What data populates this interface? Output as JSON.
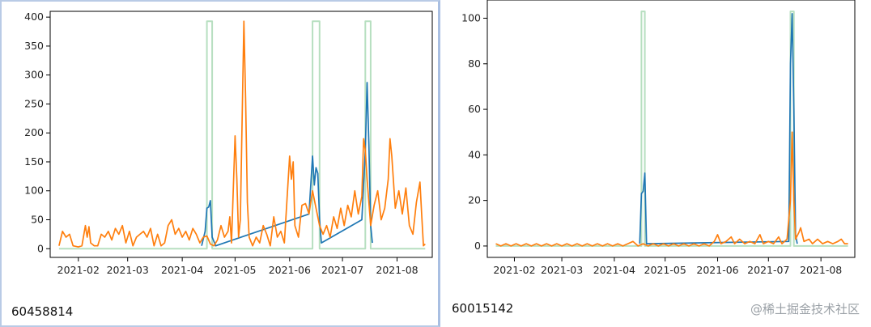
{
  "captions": {
    "left": "60458814",
    "right": "60015142"
  },
  "watermark": "@稀土掘金技术社区",
  "colors": {
    "series_blue": "#1f77b4",
    "series_orange": "#ff7f0e",
    "series_green": "#b7dfc0"
  },
  "chart_data": [
    {
      "type": "line",
      "x_type": "date",
      "xlim": [
        "2021-01-16",
        "2021-08-21"
      ],
      "ylim": [
        -15,
        410
      ],
      "x_ticks": [
        "2021-02",
        "2021-03",
        "2021-04",
        "2021-05",
        "2021-06",
        "2021-07",
        "2021-08"
      ],
      "y_ticks": [
        0,
        50,
        100,
        150,
        200,
        250,
        300,
        350,
        400
      ],
      "series": [
        {
          "color": "#b7dfc0",
          "shape": "step",
          "points": [
            [
              "2021-01-21",
              0
            ],
            [
              "2021-04-15",
              0
            ],
            [
              "2021-04-15",
              393
            ],
            [
              "2021-04-18",
              393
            ],
            [
              "2021-04-18",
              0
            ],
            [
              "2021-06-14",
              0
            ],
            [
              "2021-06-14",
              393
            ],
            [
              "2021-06-18",
              393
            ],
            [
              "2021-06-18",
              0
            ],
            [
              "2021-07-14",
              0
            ],
            [
              "2021-07-14",
              393
            ],
            [
              "2021-07-17",
              393
            ],
            [
              "2021-07-17",
              0
            ],
            [
              "2021-08-17",
              0
            ]
          ]
        },
        {
          "color": "#1f77b4",
          "points": [
            [
              "2021-04-12",
              5
            ],
            [
              "2021-04-14",
              30
            ],
            [
              "2021-04-15",
              70
            ],
            [
              "2021-04-16",
              72
            ],
            [
              "2021-04-17",
              83
            ],
            [
              "2021-04-18",
              20
            ],
            [
              "2021-04-20",
              5
            ],
            [
              "2021-06-12",
              60
            ],
            [
              "2021-06-14",
              160
            ],
            [
              "2021-06-15",
              110
            ],
            [
              "2021-06-16",
              140
            ],
            [
              "2021-06-17",
              130
            ],
            [
              "2021-06-18",
              50
            ],
            [
              "2021-06-19",
              10
            ],
            [
              "2021-07-12",
              50
            ],
            [
              "2021-07-14",
              170
            ],
            [
              "2021-07-15",
              287
            ],
            [
              "2021-07-16",
              180
            ],
            [
              "2021-07-17",
              40
            ],
            [
              "2021-07-18",
              10
            ]
          ]
        },
        {
          "color": "#ff7f0e",
          "points": [
            [
              "2021-01-21",
              5
            ],
            [
              "2021-01-23",
              30
            ],
            [
              "2021-01-25",
              20
            ],
            [
              "2021-01-27",
              25
            ],
            [
              "2021-01-29",
              5
            ],
            [
              "2021-02-01",
              3
            ],
            [
              "2021-02-03",
              5
            ],
            [
              "2021-02-05",
              40
            ],
            [
              "2021-02-06",
              20
            ],
            [
              "2021-02-07",
              38
            ],
            [
              "2021-02-08",
              10
            ],
            [
              "2021-02-10",
              5
            ],
            [
              "2021-02-12",
              5
            ],
            [
              "2021-02-14",
              25
            ],
            [
              "2021-02-16",
              20
            ],
            [
              "2021-02-18",
              30
            ],
            [
              "2021-02-20",
              15
            ],
            [
              "2021-02-22",
              35
            ],
            [
              "2021-02-24",
              25
            ],
            [
              "2021-02-26",
              40
            ],
            [
              "2021-02-28",
              10
            ],
            [
              "2021-03-02",
              30
            ],
            [
              "2021-03-04",
              5
            ],
            [
              "2021-03-06",
              20
            ],
            [
              "2021-03-08",
              25
            ],
            [
              "2021-03-10",
              30
            ],
            [
              "2021-03-12",
              20
            ],
            [
              "2021-03-14",
              35
            ],
            [
              "2021-03-16",
              5
            ],
            [
              "2021-03-18",
              25
            ],
            [
              "2021-03-20",
              5
            ],
            [
              "2021-03-22",
              10
            ],
            [
              "2021-03-24",
              40
            ],
            [
              "2021-03-26",
              50
            ],
            [
              "2021-03-28",
              25
            ],
            [
              "2021-03-30",
              35
            ],
            [
              "2021-04-01",
              20
            ],
            [
              "2021-04-03",
              30
            ],
            [
              "2021-04-05",
              15
            ],
            [
              "2021-04-07",
              35
            ],
            [
              "2021-04-09",
              25
            ],
            [
              "2021-04-11",
              10
            ],
            [
              "2021-04-13",
              20
            ],
            [
              "2021-04-15",
              22
            ],
            [
              "2021-04-17",
              8
            ],
            [
              "2021-04-19",
              5
            ],
            [
              "2021-04-21",
              15
            ],
            [
              "2021-04-23",
              40
            ],
            [
              "2021-04-25",
              20
            ],
            [
              "2021-04-27",
              30
            ],
            [
              "2021-04-28",
              55
            ],
            [
              "2021-04-29",
              10
            ],
            [
              "2021-05-01",
              195
            ],
            [
              "2021-05-02",
              120
            ],
            [
              "2021-05-03",
              20
            ],
            [
              "2021-05-04",
              50
            ],
            [
              "2021-05-06",
              393
            ],
            [
              "2021-05-07",
              260
            ],
            [
              "2021-05-08",
              80
            ],
            [
              "2021-05-09",
              20
            ],
            [
              "2021-05-11",
              5
            ],
            [
              "2021-05-13",
              20
            ],
            [
              "2021-05-15",
              10
            ],
            [
              "2021-05-17",
              40
            ],
            [
              "2021-05-19",
              25
            ],
            [
              "2021-05-21",
              5
            ],
            [
              "2021-05-23",
              55
            ],
            [
              "2021-05-25",
              20
            ],
            [
              "2021-05-27",
              30
            ],
            [
              "2021-05-29",
              10
            ],
            [
              "2021-06-01",
              160
            ],
            [
              "2021-06-02",
              120
            ],
            [
              "2021-06-03",
              150
            ],
            [
              "2021-06-04",
              40
            ],
            [
              "2021-06-06",
              20
            ],
            [
              "2021-06-08",
              75
            ],
            [
              "2021-06-10",
              78
            ],
            [
              "2021-06-12",
              60
            ],
            [
              "2021-06-14",
              100
            ],
            [
              "2021-06-16",
              70
            ],
            [
              "2021-06-18",
              40
            ],
            [
              "2021-06-20",
              25
            ],
            [
              "2021-06-22",
              40
            ],
            [
              "2021-06-24",
              20
            ],
            [
              "2021-06-26",
              55
            ],
            [
              "2021-06-28",
              35
            ],
            [
              "2021-06-30",
              70
            ],
            [
              "2021-07-02",
              40
            ],
            [
              "2021-07-04",
              75
            ],
            [
              "2021-07-06",
              55
            ],
            [
              "2021-07-08",
              100
            ],
            [
              "2021-07-10",
              60
            ],
            [
              "2021-07-12",
              90
            ],
            [
              "2021-07-13",
              190
            ],
            [
              "2021-07-14",
              170
            ],
            [
              "2021-07-15",
              120
            ],
            [
              "2021-07-17",
              40
            ],
            [
              "2021-07-19",
              75
            ],
            [
              "2021-07-21",
              100
            ],
            [
              "2021-07-23",
              50
            ],
            [
              "2021-07-25",
              70
            ],
            [
              "2021-07-27",
              120
            ],
            [
              "2021-07-28",
              190
            ],
            [
              "2021-07-29",
              160
            ],
            [
              "2021-07-31",
              70
            ],
            [
              "2021-08-02",
              100
            ],
            [
              "2021-08-04",
              60
            ],
            [
              "2021-08-06",
              105
            ],
            [
              "2021-08-08",
              40
            ],
            [
              "2021-08-10",
              25
            ],
            [
              "2021-08-12",
              80
            ],
            [
              "2021-08-14",
              115
            ],
            [
              "2021-08-15",
              60
            ],
            [
              "2021-08-16",
              5
            ],
            [
              "2021-08-17",
              8
            ]
          ]
        }
      ]
    },
    {
      "type": "line",
      "x_type": "date",
      "xlim": [
        "2021-01-16",
        "2021-08-21"
      ],
      "ylim": [
        -5,
        108
      ],
      "x_ticks": [
        "2021-02",
        "2021-03",
        "2021-04",
        "2021-05",
        "2021-06",
        "2021-07",
        "2021-08"
      ],
      "y_ticks": [
        0,
        20,
        40,
        60,
        80,
        100
      ],
      "series": [
        {
          "color": "#b7dfc0",
          "shape": "step",
          "points": [
            [
              "2021-01-21",
              0
            ],
            [
              "2021-04-17",
              0
            ],
            [
              "2021-04-17",
              103
            ],
            [
              "2021-04-19",
              103
            ],
            [
              "2021-04-19",
              0
            ],
            [
              "2021-07-14",
              0
            ],
            [
              "2021-07-14",
              103
            ],
            [
              "2021-07-16",
              103
            ],
            [
              "2021-07-16",
              0
            ],
            [
              "2021-08-17",
              0
            ]
          ]
        },
        {
          "color": "#1f77b4",
          "points": [
            [
              "2021-04-16",
              1
            ],
            [
              "2021-04-17",
              23
            ],
            [
              "2021-04-18",
              24
            ],
            [
              "2021-04-19",
              32
            ],
            [
              "2021-04-20",
              1
            ],
            [
              "2021-07-13",
              2
            ],
            [
              "2021-07-14",
              80
            ],
            [
              "2021-07-15",
              102
            ],
            [
              "2021-07-16",
              60
            ],
            [
              "2021-07-17",
              5
            ],
            [
              "2021-07-18",
              1
            ]
          ]
        },
        {
          "color": "#ff7f0e",
          "points": [
            [
              "2021-01-21",
              1
            ],
            [
              "2021-01-24",
              0
            ],
            [
              "2021-01-27",
              1
            ],
            [
              "2021-01-30",
              0
            ],
            [
              "2021-02-02",
              1
            ],
            [
              "2021-02-05",
              0
            ],
            [
              "2021-02-08",
              1
            ],
            [
              "2021-02-11",
              0
            ],
            [
              "2021-02-14",
              1
            ],
            [
              "2021-02-17",
              0
            ],
            [
              "2021-02-20",
              1
            ],
            [
              "2021-02-23",
              0
            ],
            [
              "2021-02-26",
              1
            ],
            [
              "2021-03-01",
              0
            ],
            [
              "2021-03-04",
              1
            ],
            [
              "2021-03-07",
              0
            ],
            [
              "2021-03-10",
              1
            ],
            [
              "2021-03-13",
              0
            ],
            [
              "2021-03-16",
              1
            ],
            [
              "2021-03-19",
              0
            ],
            [
              "2021-03-22",
              1
            ],
            [
              "2021-03-25",
              0
            ],
            [
              "2021-03-28",
              1
            ],
            [
              "2021-03-31",
              0
            ],
            [
              "2021-04-03",
              1
            ],
            [
              "2021-04-06",
              0
            ],
            [
              "2021-04-09",
              1
            ],
            [
              "2021-04-12",
              2
            ],
            [
              "2021-04-15",
              0
            ],
            [
              "2021-04-18",
              1
            ],
            [
              "2021-04-21",
              0
            ],
            [
              "2021-04-24",
              1
            ],
            [
              "2021-04-27",
              0
            ],
            [
              "2021-04-30",
              1
            ],
            [
              "2021-05-03",
              0
            ],
            [
              "2021-05-06",
              1
            ],
            [
              "2021-05-09",
              0
            ],
            [
              "2021-05-12",
              1
            ],
            [
              "2021-05-15",
              0
            ],
            [
              "2021-05-18",
              1
            ],
            [
              "2021-05-21",
              0
            ],
            [
              "2021-05-24",
              1
            ],
            [
              "2021-05-27",
              0
            ],
            [
              "2021-05-30",
              2
            ],
            [
              "2021-06-01",
              5
            ],
            [
              "2021-06-03",
              1
            ],
            [
              "2021-06-06",
              2
            ],
            [
              "2021-06-09",
              4
            ],
            [
              "2021-06-11",
              1
            ],
            [
              "2021-06-14",
              3
            ],
            [
              "2021-06-17",
              1
            ],
            [
              "2021-06-20",
              2
            ],
            [
              "2021-06-23",
              1
            ],
            [
              "2021-06-26",
              5
            ],
            [
              "2021-06-28",
              1
            ],
            [
              "2021-07-01",
              2
            ],
            [
              "2021-07-04",
              1
            ],
            [
              "2021-07-07",
              4
            ],
            [
              "2021-07-09",
              1
            ],
            [
              "2021-07-12",
              3
            ],
            [
              "2021-07-14",
              20
            ],
            [
              "2021-07-15",
              50
            ],
            [
              "2021-07-16",
              20
            ],
            [
              "2021-07-17",
              3
            ],
            [
              "2021-07-19",
              6
            ],
            [
              "2021-07-20",
              8
            ],
            [
              "2021-07-22",
              2
            ],
            [
              "2021-07-25",
              3
            ],
            [
              "2021-07-27",
              1
            ],
            [
              "2021-07-30",
              3
            ],
            [
              "2021-08-02",
              1
            ],
            [
              "2021-08-05",
              2
            ],
            [
              "2021-08-08",
              1
            ],
            [
              "2021-08-11",
              2
            ],
            [
              "2021-08-13",
              3
            ],
            [
              "2021-08-15",
              1
            ],
            [
              "2021-08-17",
              1
            ]
          ]
        }
      ]
    }
  ]
}
